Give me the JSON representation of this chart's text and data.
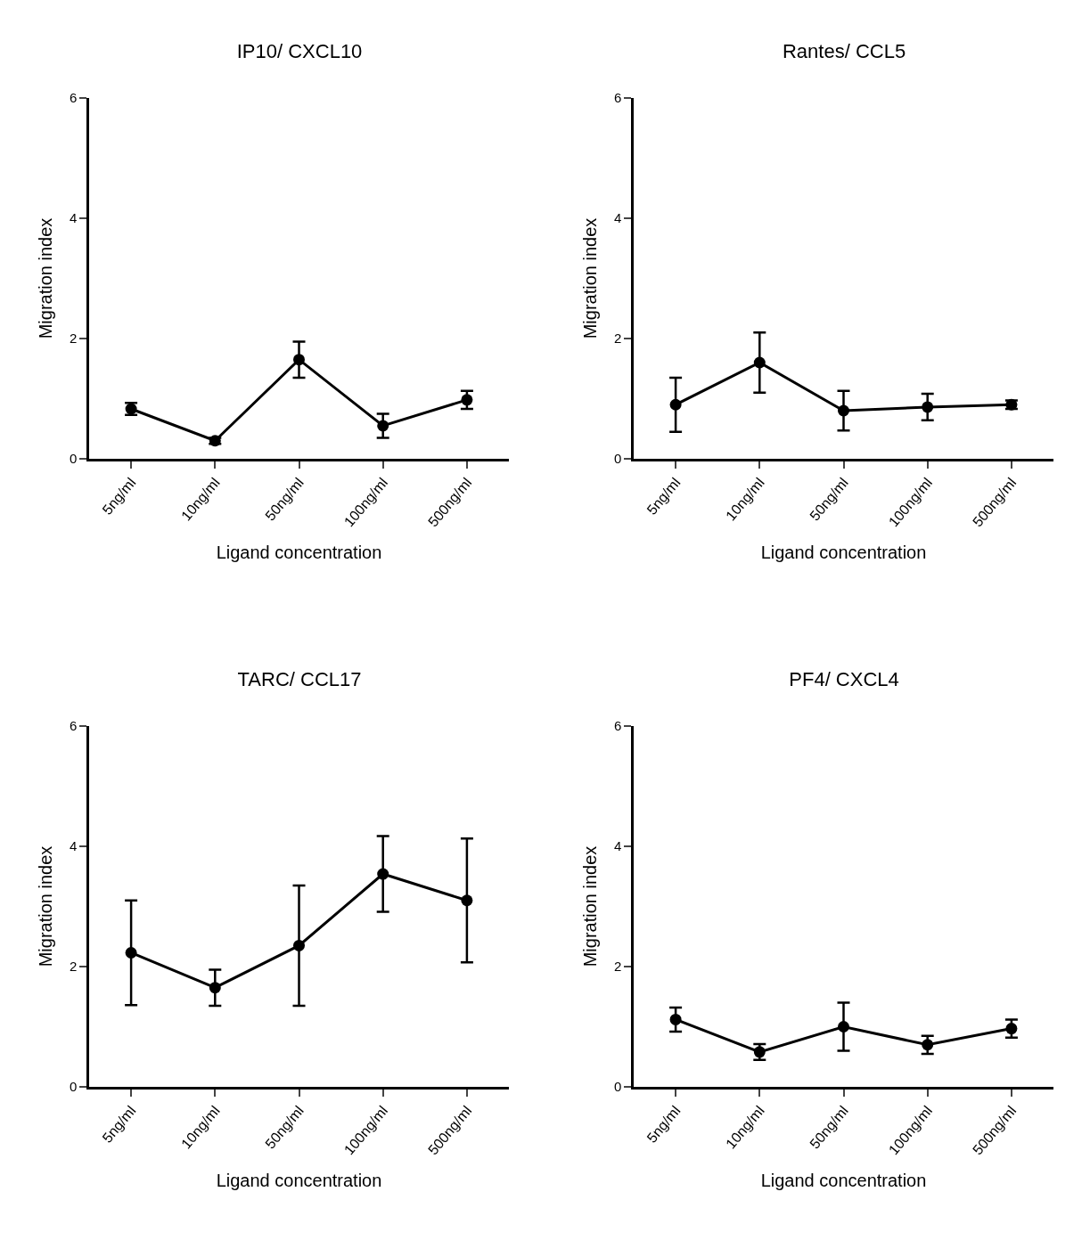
{
  "chart_data": [
    {
      "type": "line",
      "title": "IP10/ CXCL10",
      "xlabel": "Ligand concentration",
      "ylabel": "Migration index",
      "categories": [
        "5ng/ml",
        "10ng/ml",
        "50ng/ml",
        "100ng/ml",
        "500ng/ml"
      ],
      "values": [
        0.83,
        0.3,
        1.65,
        0.55,
        0.98
      ],
      "errors": [
        0.1,
        0.05,
        0.3,
        0.2,
        0.15
      ],
      "color": "#000000",
      "marker": "circle",
      "ylim": [
        0,
        6
      ],
      "yticks": [
        0,
        2,
        4,
        6
      ]
    },
    {
      "type": "line",
      "title": "Rantes/ CCL5",
      "xlabel": "Ligand concentration",
      "ylabel": "Migration index",
      "categories": [
        "5ng/ml",
        "10ng/ml",
        "50ng/ml",
        "100ng/ml",
        "500ng/ml"
      ],
      "values": [
        0.9,
        1.6,
        0.8,
        0.86,
        0.9
      ],
      "errors": [
        0.45,
        0.5,
        0.33,
        0.22,
        0.07
      ],
      "color": "#000000",
      "marker": "circle",
      "ylim": [
        0,
        6
      ],
      "yticks": [
        0,
        2,
        4,
        6
      ]
    },
    {
      "type": "line",
      "title": "TARC/ CCL17",
      "xlabel": "Ligand concentration",
      "ylabel": "Migration index",
      "categories": [
        "5ng/ml",
        "10ng/ml",
        "50ng/ml",
        "100ng/ml",
        "500ng/ml"
      ],
      "values": [
        2.23,
        1.65,
        2.35,
        3.54,
        3.1
      ],
      "errors": [
        0.87,
        0.3,
        1.0,
        0.63,
        1.03
      ],
      "color": "#000000",
      "marker": "circle",
      "ylim": [
        0,
        6
      ],
      "yticks": [
        0,
        2,
        4,
        6
      ]
    },
    {
      "type": "line",
      "title": "PF4/ CXCL4",
      "xlabel": "Ligand concentration",
      "ylabel": "Migration index",
      "categories": [
        "5ng/ml",
        "10ng/ml",
        "50ng/ml",
        "100ng/ml",
        "500ng/ml"
      ],
      "values": [
        1.12,
        0.58,
        1.0,
        0.7,
        0.97
      ],
      "errors": [
        0.2,
        0.13,
        0.4,
        0.15,
        0.15
      ],
      "color": "#000000",
      "marker": "circle",
      "ylim": [
        0,
        6
      ],
      "yticks": [
        0,
        2,
        4,
        6
      ]
    }
  ]
}
